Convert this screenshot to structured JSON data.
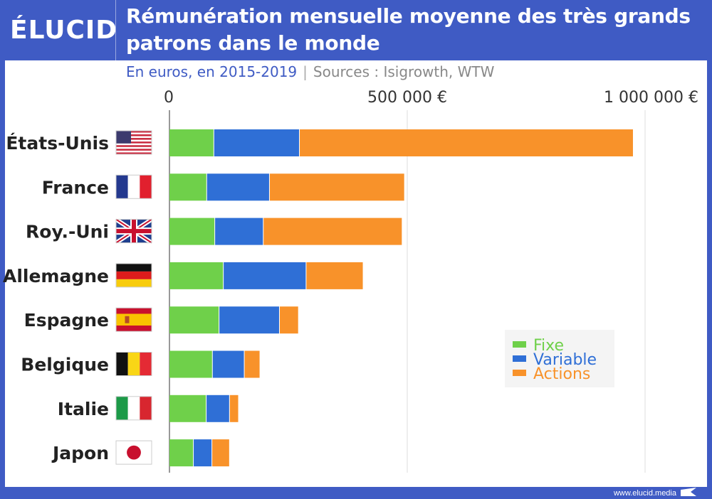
{
  "brand": {
    "logo": "ÉLUCID",
    "footer": "www.elucid.media"
  },
  "colors": {
    "frame": "#3f5bc4",
    "fixe": "#6fd04a",
    "variable": "#2f6fd6",
    "actions": "#f8922a"
  },
  "chart_data": {
    "type": "bar",
    "orientation": "horizontal",
    "stacked": true,
    "title": "Rémunération mensuelle moyenne des très grands patrons dans le monde",
    "subtitle": "En euros, en 2015-2019",
    "source": "Sources : Isigrowth, WTW",
    "categories": [
      "États-Unis",
      "France",
      "Roy.-Uni",
      "Allemagne",
      "Espagne",
      "Belgique",
      "Italie",
      "Japon"
    ],
    "flags": [
      "us",
      "fr",
      "uk",
      "de",
      "es",
      "be",
      "it",
      "jp"
    ],
    "series": [
      {
        "name": "Fixe",
        "color": "#6fd04a",
        "values": [
          94000,
          79000,
          96000,
          114000,
          105000,
          91000,
          78000,
          51000
        ]
      },
      {
        "name": "Variable",
        "color": "#2f6fd6",
        "values": [
          180000,
          132000,
          102000,
          174000,
          127000,
          67000,
          49000,
          39000
        ]
      },
      {
        "name": "Actions",
        "color": "#f8922a",
        "values": [
          702000,
          284000,
          292000,
          120000,
          40000,
          33000,
          19000,
          37000
        ]
      }
    ],
    "xlim": [
      0,
      1000000
    ],
    "ticks": [
      {
        "value": 0,
        "label": "0"
      },
      {
        "value": 500000,
        "label": "500 000 €"
      },
      {
        "value": 1000000,
        "label": "1 000 000 €"
      }
    ],
    "grid": true,
    "legend": "bottom-right"
  }
}
